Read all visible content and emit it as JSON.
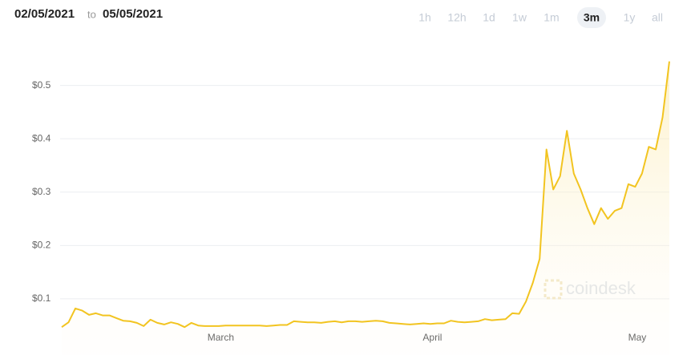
{
  "header": {
    "from": "02/05/2021",
    "joiner": "to",
    "to": "05/05/2021",
    "ranges": [
      "1h",
      "12h",
      "1d",
      "1w",
      "1m",
      "3m",
      "1y",
      "all"
    ],
    "active_range": 5
  },
  "chart_data": {
    "type": "line",
    "color": "#f2c420",
    "watermark": "coindesk",
    "grid": true,
    "categories": [
      null,
      null,
      null,
      null,
      null,
      null,
      null,
      null,
      null,
      null,
      null,
      null,
      null,
      null,
      null,
      null,
      null,
      null,
      null,
      null,
      null,
      null,
      null,
      null,
      "March",
      null,
      null,
      null,
      null,
      null,
      null,
      null,
      null,
      null,
      null,
      null,
      null,
      null,
      null,
      null,
      null,
      null,
      null,
      null,
      null,
      null,
      null,
      null,
      null,
      null,
      null,
      null,
      null,
      null,
      null,
      "April",
      null,
      null,
      null,
      null,
      null,
      null,
      null,
      null,
      null,
      null,
      null,
      null,
      null,
      null,
      null,
      null,
      null,
      null,
      null,
      null,
      null,
      null,
      null,
      null,
      null,
      null,
      null,
      null,
      null,
      "May",
      null,
      null,
      null,
      null
    ],
    "values": [
      0.047,
      0.056,
      0.082,
      0.078,
      0.07,
      0.073,
      0.069,
      0.069,
      0.064,
      0.059,
      0.058,
      0.055,
      0.049,
      0.061,
      0.055,
      0.052,
      0.056,
      0.053,
      0.047,
      0.055,
      0.05,
      0.049,
      0.049,
      0.049,
      0.05,
      0.05,
      0.05,
      0.05,
      0.05,
      0.05,
      0.049,
      0.05,
      0.051,
      0.051,
      0.058,
      0.057,
      0.056,
      0.056,
      0.055,
      0.057,
      0.058,
      0.056,
      0.058,
      0.058,
      0.057,
      0.058,
      0.059,
      0.058,
      0.055,
      0.054,
      0.053,
      0.052,
      0.053,
      0.054,
      0.053,
      0.054,
      0.054,
      0.059,
      0.057,
      0.056,
      0.057,
      0.058,
      0.062,
      0.06,
      0.061,
      0.062,
      0.073,
      0.072,
      0.095,
      0.13,
      0.175,
      0.38,
      0.305,
      0.33,
      0.415,
      0.335,
      0.305,
      0.27,
      0.24,
      0.27,
      0.25,
      0.265,
      0.27,
      0.315,
      0.31,
      0.335,
      0.385,
      0.38,
      0.44,
      0.545
    ],
    "ylim": [
      0,
      0.57
    ],
    "yticks": [
      {
        "value": 0.1,
        "label": "$0.1"
      },
      {
        "value": 0.2,
        "label": "$0.2"
      },
      {
        "value": 0.3,
        "label": "$0.3"
      },
      {
        "value": 0.4,
        "label": "$0.4"
      },
      {
        "value": 0.5,
        "label": "$0.5"
      }
    ]
  }
}
